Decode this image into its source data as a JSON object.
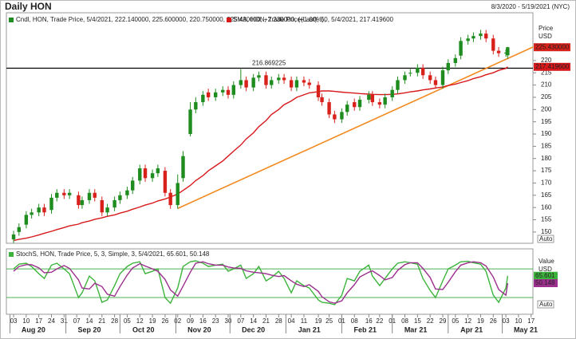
{
  "chart_data": {
    "type": "candlestick",
    "title": "Daily HON",
    "subtitle": "8/3/2020 - 5/19/2021 (NYC)",
    "y_axis_label": [
      "Price",
      "USD"
    ],
    "scale_label": "Auto",
    "xlim": [
      "2020-07-30",
      "2021-05-18"
    ],
    "ylim": [
      145.4,
      239.5
    ],
    "yticks": [
      150,
      155,
      160,
      165,
      170,
      175,
      180,
      185,
      190,
      195,
      200,
      205,
      210,
      215,
      220
    ],
    "xticks": [
      {
        "value": "2020-08-03",
        "label": "03"
      },
      {
        "value": "2020-08-10",
        "label": "10"
      },
      {
        "value": "2020-08-17",
        "label": "17"
      },
      {
        "value": "2020-08-24",
        "label": "24"
      },
      {
        "value": "2020-08-31",
        "label": "31"
      },
      {
        "value": "2020-09-07",
        "label": "07"
      },
      {
        "value": "2020-09-14",
        "label": "14"
      },
      {
        "value": "2020-09-21",
        "label": "21"
      },
      {
        "value": "2020-09-28",
        "label": "28"
      },
      {
        "value": "2020-10-05",
        "label": "05"
      },
      {
        "value": "2020-10-12",
        "label": "12"
      },
      {
        "value": "2020-10-19",
        "label": "19"
      },
      {
        "value": "2020-10-26",
        "label": "26"
      },
      {
        "value": "2020-11-02",
        "label": "02"
      },
      {
        "value": "2020-11-09",
        "label": "09"
      },
      {
        "value": "2020-11-16",
        "label": "16"
      },
      {
        "value": "2020-11-23",
        "label": "23"
      },
      {
        "value": "2020-11-30",
        "label": "30"
      },
      {
        "value": "2020-12-07",
        "label": "07"
      },
      {
        "value": "2020-12-14",
        "label": "14"
      },
      {
        "value": "2020-12-21",
        "label": "21"
      },
      {
        "value": "2020-12-28",
        "label": "28"
      },
      {
        "value": "2021-01-04",
        "label": "04"
      },
      {
        "value": "2021-01-11",
        "label": "11"
      },
      {
        "value": "2021-01-19",
        "label": "19"
      },
      {
        "value": "2021-01-25",
        "label": "25"
      },
      {
        "value": "2021-02-01",
        "label": "01"
      },
      {
        "value": "2021-02-08",
        "label": "08"
      },
      {
        "value": "2021-02-16",
        "label": "16"
      },
      {
        "value": "2021-02-22",
        "label": "22"
      },
      {
        "value": "2021-03-01",
        "label": "01"
      },
      {
        "value": "2021-03-08",
        "label": "08"
      },
      {
        "value": "2021-03-15",
        "label": "15"
      },
      {
        "value": "2021-03-22",
        "label": "22"
      },
      {
        "value": "2021-03-29",
        "label": "29"
      },
      {
        "value": "2021-04-05",
        "label": "05"
      },
      {
        "value": "2021-04-12",
        "label": "12"
      },
      {
        "value": "2021-04-19",
        "label": "19"
      },
      {
        "value": "2021-04-26",
        "label": "26"
      },
      {
        "value": "2021-05-03",
        "label": "03"
      },
      {
        "value": "2021-05-10",
        "label": "10"
      },
      {
        "value": "2021-05-17",
        "label": "17"
      }
    ],
    "months": [
      {
        "value": "2020-08-01",
        "label": "Aug 20"
      },
      {
        "value": "2020-09-01",
        "label": "Sep 20"
      },
      {
        "value": "2020-10-01",
        "label": "Oct 20"
      },
      {
        "value": "2020-11-01",
        "label": "Nov 20"
      },
      {
        "value": "2020-12-01",
        "label": "Dec 20"
      },
      {
        "value": "2021-01-01",
        "label": "Jan 21"
      },
      {
        "value": "2021-02-01",
        "label": "Feb 21"
      },
      {
        "value": "2021-03-01",
        "label": "Mar 21"
      },
      {
        "value": "2021-04-01",
        "label": "Apr 21"
      },
      {
        "value": "2021-05-01",
        "label": "May 21"
      }
    ],
    "x": [
      "2020-08-03",
      "2020-08-06",
      "2020-08-10",
      "2020-08-13",
      "2020-08-17",
      "2020-08-20",
      "2020-08-24",
      "2020-08-27",
      "2020-08-31",
      "2020-09-03",
      "2020-09-08",
      "2020-09-10",
      "2020-09-14",
      "2020-09-17",
      "2020-09-21",
      "2020-09-24",
      "2020-09-28",
      "2020-10-01",
      "2020-10-05",
      "2020-10-08",
      "2020-10-12",
      "2020-10-15",
      "2020-10-19",
      "2020-10-22",
      "2020-10-26",
      "2020-10-29",
      "2020-11-02",
      "2020-11-05",
      "2020-11-09",
      "2020-11-12",
      "2020-11-16",
      "2020-11-19",
      "2020-11-23",
      "2020-11-27",
      "2020-11-30",
      "2020-12-03",
      "2020-12-07",
      "2020-12-10",
      "2020-12-14",
      "2020-12-17",
      "2020-12-21",
      "2020-12-24",
      "2020-12-28",
      "2020-12-31",
      "2021-01-04",
      "2021-01-07",
      "2021-01-11",
      "2021-01-14",
      "2021-01-19",
      "2021-01-21",
      "2021-01-25",
      "2021-01-28",
      "2021-02-01",
      "2021-02-04",
      "2021-02-08",
      "2021-02-11",
      "2021-02-16",
      "2021-02-18",
      "2021-02-22",
      "2021-02-25",
      "2021-03-01",
      "2021-03-04",
      "2021-03-08",
      "2021-03-11",
      "2021-03-15",
      "2021-03-18",
      "2021-03-22",
      "2021-03-25",
      "2021-03-29",
      "2021-04-01",
      "2021-04-05",
      "2021-04-08",
      "2021-04-12",
      "2021-04-15",
      "2021-04-19",
      "2021-04-22",
      "2021-04-26",
      "2021-04-29",
      "2021-05-03",
      "2021-05-04"
    ],
    "candles": {
      "name": "Cndl, HON, Trade Price, 5/4/2021, 222.140000, 225.600000, 220.750000, 225.430000, +2.230000, (+1.00%),",
      "up_color": "#1e8c1e",
      "down_color": "#d9211c",
      "last_label": "225.430000",
      "open": [
        147,
        150,
        153,
        157,
        158,
        160,
        159,
        164,
        166,
        165,
        165,
        161,
        163,
        166,
        163,
        158,
        160,
        163,
        165,
        167,
        171,
        176,
        172,
        174,
        175,
        166,
        161,
        172,
        190,
        200,
        203,
        207,
        205,
        207,
        208,
        206,
        210,
        212,
        209,
        213,
        214,
        210,
        212,
        213,
        212,
        209,
        212,
        211,
        210,
        205,
        203,
        198,
        196,
        199,
        203,
        201,
        204,
        206,
        203,
        202,
        205,
        208,
        212,
        215,
        215,
        217,
        214,
        212,
        210,
        216,
        219,
        222,
        228,
        229,
        230,
        231,
        229,
        224,
        223,
        222.14
      ],
      "high": [
        150.5,
        153.5,
        158.5,
        159.5,
        161.5,
        161.5,
        165.5,
        167.5,
        167.5,
        167.5,
        166.5,
        164.5,
        167.5,
        167.5,
        164.5,
        161.5,
        164.5,
        166.5,
        168.5,
        172.5,
        177.5,
        177.5,
        175.5,
        177.5,
        176.5,
        167.5,
        173.5,
        183,
        203,
        205,
        207.5,
        208.5,
        208.5,
        209.5,
        209.5,
        211.5,
        216.5,
        213.5,
        214.5,
        215.5,
        215.5,
        213.5,
        214.5,
        214.5,
        213.5,
        213.5,
        213.5,
        212.5,
        211.5,
        206.5,
        204.5,
        199.5,
        200.5,
        203.5,
        204.5,
        205.5,
        207.5,
        207.5,
        204.5,
        206.5,
        209.5,
        213.5,
        215.5,
        216.5,
        218.5,
        218.5,
        215.5,
        213.5,
        217.5,
        220.5,
        222.5,
        229.5,
        230.5,
        231.5,
        232.5,
        232.5,
        230.5,
        225.5,
        224.5,
        225.6
      ],
      "low": [
        145.5,
        148.5,
        151.5,
        155.5,
        156.5,
        156.5,
        157.5,
        162.5,
        163.5,
        163.5,
        159.5,
        159.5,
        161.5,
        162.5,
        156.5,
        156.5,
        158.5,
        161.5,
        163.5,
        165.5,
        169.5,
        170.5,
        170.5,
        172.5,
        164.5,
        159.5,
        159.5,
        170.5,
        189,
        198.5,
        201.5,
        203.5,
        203.5,
        205.5,
        204.5,
        204.5,
        208.5,
        207.5,
        207.5,
        211.5,
        208.5,
        208.5,
        210.5,
        210.5,
        207.5,
        207.5,
        209.5,
        208.5,
        203.5,
        201.5,
        196.5,
        194.5,
        194.5,
        197.5,
        199.5,
        199.5,
        202.5,
        201.5,
        200.5,
        200.5,
        203.5,
        206.5,
        210.5,
        213.5,
        213.5,
        212.5,
        210.5,
        208.5,
        208.5,
        214.5,
        217.5,
        220.5,
        226.5,
        227.5,
        228.5,
        227.5,
        222.5,
        221.5,
        221.5,
        220.75
      ],
      "close": [
        149,
        152,
        157,
        158,
        160,
        158,
        164,
        166,
        165,
        166,
        161,
        163,
        166,
        164,
        158,
        160,
        163,
        165,
        167,
        171,
        176,
        172,
        174,
        176,
        166,
        161,
        170,
        181,
        200,
        203,
        206,
        205,
        207,
        208,
        206,
        210,
        212,
        209,
        213,
        214,
        210,
        212,
        213,
        212,
        209,
        212,
        211,
        210,
        205,
        203,
        198,
        196,
        199,
        202,
        201,
        204,
        206,
        203,
        202,
        205,
        208,
        212,
        214,
        215,
        217,
        214,
        212,
        210,
        216,
        219,
        221,
        228,
        229,
        230,
        231,
        229,
        224,
        223,
        223.2,
        225.43
      ]
    },
    "series": [
      {
        "name": "SMA, HON, Trade Price(Last), 50, 5/4/2021, 217.419600",
        "color": "#d7191c",
        "last_label": "217.419600",
        "values": [
          146.5,
          147,
          147.5,
          148,
          148.8,
          149.5,
          150.3,
          151,
          151.8,
          152.5,
          153.2,
          153.8,
          154.5,
          155.2,
          155.8,
          156.4,
          157,
          157.7,
          158.5,
          159.3,
          160.2,
          161,
          161.8,
          162.7,
          163.5,
          164.3,
          165.5,
          167,
          169,
          171,
          173,
          175,
          177,
          179,
          181,
          183,
          185.5,
          188,
          190.5,
          193,
          195.5,
          198,
          200,
          202,
          203.5,
          205,
          206,
          206.8,
          207.3,
          207.6,
          207.6,
          207.4,
          207.1,
          206.9,
          206.7,
          206.5,
          206.3,
          206.2,
          206.1,
          206.1,
          206.2,
          206.4,
          206.8,
          207.2,
          207.6,
          208,
          208.4,
          208.8,
          209.2,
          209.8,
          210.4,
          211,
          211.8,
          212.6,
          213.4,
          214.2,
          215,
          216,
          216.8,
          217.4196
        ]
      }
    ],
    "trendline": {
      "color": "#f28a1e",
      "x": [
        "2020-11-02",
        "2021-05-18"
      ],
      "values": [
        159.6,
        225.5
      ]
    },
    "hline": {
      "value": 216.869225,
      "color": "#000000",
      "label_color": "#2b4a9e"
    },
    "indicator": {
      "type": "line",
      "name": "StochS, HON, Trade Price, 5, 3, Simple, 3, 5/4/2021, 65.601, 50.148",
      "y_axis_label": [
        "Value",
        "USD"
      ],
      "scale_label": "Auto",
      "ylim": [
        -15,
        122
      ],
      "levels": [
        80,
        20
      ],
      "level_color": "#4caf50",
      "series": [
        {
          "color": "#3cb43c",
          "values": [
            80,
            90,
            92,
            85,
            70,
            60,
            88,
            92,
            80,
            70,
            20,
            30,
            65,
            55,
            10,
            15,
            45,
            70,
            85,
            92,
            95,
            70,
            75,
            80,
            20,
            8,
            40,
            85,
            95,
            97,
            92,
            85,
            88,
            90,
            75,
            80,
            88,
            60,
            70,
            85,
            55,
            62,
            75,
            60,
            30,
            55,
            45,
            40,
            15,
            10,
            8,
            5,
            25,
            60,
            55,
            75,
            88,
            65,
            45,
            60,
            80,
            92,
            95,
            93,
            90,
            60,
            35,
            20,
            55,
            80,
            88,
            95,
            96,
            93,
            90,
            75,
            25,
            10,
            40,
            65.601
          ]
        },
        {
          "color": "#9c2f8e",
          "values": [
            75,
            85,
            89,
            89,
            82,
            72,
            73,
            80,
            87,
            81,
            57,
            40,
            38,
            50,
            43,
            27,
            23,
            43,
            67,
            82,
            91,
            86,
            80,
            75,
            58,
            36,
            23,
            44,
            73,
            92,
            95,
            91,
            88,
            88,
            84,
            82,
            81,
            76,
            73,
            72,
            70,
            67,
            64,
            66,
            55,
            48,
            43,
            47,
            33,
            22,
            11,
            8,
            13,
            30,
            47,
            63,
            73,
            76,
            66,
            57,
            62,
            77,
            89,
            93,
            93,
            81,
            62,
            38,
            37,
            52,
            74,
            88,
            93,
            95,
            93,
            86,
            63,
            37,
            25,
            50.148
          ]
        }
      ]
    }
  }
}
